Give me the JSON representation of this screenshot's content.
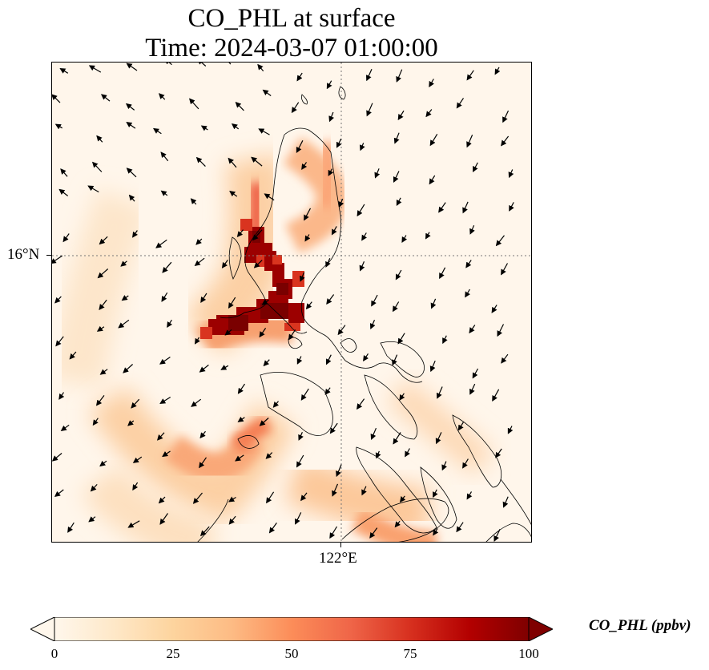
{
  "title": {
    "line1": "CO_PHL at surface",
    "line2": "Time: 2024-03-07 01:00:00"
  },
  "map": {
    "lat_label": "16°N",
    "lon_label": "122°E",
    "gridlines": "dotted",
    "field_variable": "CO_PHL",
    "features": [
      "coastlines",
      "concentration-field",
      "wind-vectors"
    ]
  },
  "colorbar": {
    "title": "CO_PHL (ppbv)",
    "colormap": "OrRd",
    "ticks": [
      "0",
      "25",
      "50",
      "75",
      "100"
    ],
    "min": 0,
    "max": 100,
    "extend": "both",
    "colors": [
      "#fff7ec",
      "#fee8c8",
      "#fdd49e",
      "#fdbb84",
      "#fc8d59",
      "#ef6548",
      "#d7301f",
      "#b30000",
      "#7f0000"
    ]
  }
}
